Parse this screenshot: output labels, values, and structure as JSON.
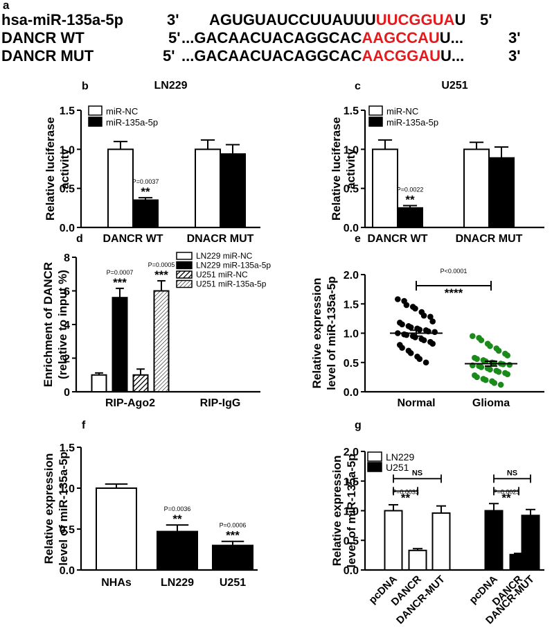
{
  "panel_a": {
    "label": "a",
    "rows": [
      {
        "name": "hsa-miR-135a-5p",
        "end5": "3'",
        "seq_pre": "AGUGUAUCCUUAUUU",
        "seq_red": "UUCGGUA",
        "seq_post": "U",
        "end3": "5'"
      },
      {
        "name": "DANCR WT",
        "end5": "5'",
        "seq_pre": "...GACAACUACAGGCAC",
        "seq_red": "AAGCCAU",
        "seq_post": "U...",
        "end3": "3'"
      },
      {
        "name": "DANCR MUT",
        "end5": "5'",
        "seq_pre": "...GACAACUACAGGCAC",
        "seq_red": "AACGGAU",
        "seq_post": "U...",
        "end3": "3'"
      }
    ]
  },
  "colors": {
    "highlight": "#e41a1c",
    "black": "#000000",
    "green": "#1a8a1a",
    "white": "#ffffff"
  },
  "chart_data": [
    {
      "id": "b",
      "type": "bar",
      "title": "LN229",
      "ylabel": [
        "Relative  luciferase",
        "activity"
      ],
      "ylim": [
        0,
        1.5
      ],
      "yticks": [
        0,
        0.5,
        1.0,
        1.5
      ],
      "ytick_labels": [
        "0.0",
        "0.5",
        "1.0",
        "1.5"
      ],
      "categories": [
        "DANCR WT",
        "DNACR MUT"
      ],
      "series": [
        {
          "name": "miR-NC",
          "fill": "white",
          "values": [
            1.0,
            1.0
          ],
          "errors": [
            0.1,
            0.12
          ]
        },
        {
          "name": "miR-135a-5p",
          "fill": "black",
          "values": [
            0.35,
            0.94
          ],
          "errors": [
            0.03,
            0.12
          ]
        }
      ],
      "annotations": [
        {
          "cat": 0,
          "series": 1,
          "p": "P=0.0037",
          "stars": "**"
        }
      ]
    },
    {
      "id": "c",
      "type": "bar",
      "title": "U251",
      "ylabel": [
        "Relative  luciferase",
        "activity"
      ],
      "ylim": [
        0,
        1.5
      ],
      "yticks": [
        0,
        0.5,
        1.0,
        1.5
      ],
      "ytick_labels": [
        "0.0",
        "0.5",
        "1.0",
        "1.5"
      ],
      "categories": [
        "DANCR WT",
        "DNACR MUT"
      ],
      "series": [
        {
          "name": "miR-NC",
          "fill": "white",
          "values": [
            1.0,
            1.0
          ],
          "errors": [
            0.12,
            0.09
          ]
        },
        {
          "name": "miR-135a-5p",
          "fill": "black",
          "values": [
            0.25,
            0.89
          ],
          "errors": [
            0.03,
            0.14
          ]
        }
      ],
      "annotations": [
        {
          "cat": 0,
          "series": 1,
          "p": "P=0.0022",
          "stars": "**"
        }
      ]
    },
    {
      "id": "d",
      "type": "bar",
      "ylabel": [
        "Enrichment of DANCR",
        "(relative to input %)"
      ],
      "ylim": [
        0,
        8
      ],
      "yticks": [
        0,
        2,
        4,
        6,
        8
      ],
      "ytick_labels": [
        "0",
        "2",
        "4",
        "6",
        "8"
      ],
      "categories": [
        "RIP-Ago2",
        "RIP-IgG"
      ],
      "series": [
        {
          "name": "LN229 miR-NC",
          "fill": "white",
          "values": [
            1.0,
            0
          ],
          "errors": [
            0.12,
            0
          ]
        },
        {
          "name": "LN229 miR-135a-5p",
          "fill": "black",
          "values": [
            5.6,
            0
          ],
          "errors": [
            0.55,
            0
          ]
        },
        {
          "name": "U251 miR-NC",
          "fill": "hatch-dense",
          "values": [
            1.0,
            0
          ],
          "errors": [
            0.35,
            0
          ]
        },
        {
          "name": "U251 miR-135a-5p",
          "fill": "hatch-light",
          "values": [
            6.0,
            0
          ],
          "errors": [
            0.6,
            0
          ]
        }
      ],
      "annotations": [
        {
          "cat": 0,
          "series": 1,
          "p": "P=0.0007",
          "stars": "***"
        },
        {
          "cat": 0,
          "series": 3,
          "p": "P=0.0005",
          "stars": "***"
        }
      ]
    },
    {
      "id": "e",
      "type": "scatter",
      "ylabel": [
        "Relative expression",
        "level of miR-135a-5p"
      ],
      "ylim": [
        0,
        2.0
      ],
      "yticks": [
        0,
        0.5,
        1.0,
        1.5,
        2.0
      ],
      "ytick_labels": [
        "0.0",
        "0.5",
        "1.0",
        "1.5",
        "2.0"
      ],
      "categories": [
        "Normal",
        "Glioma"
      ],
      "groups": [
        {
          "name": "Normal",
          "color": "black",
          "mean": 1.0,
          "sem": 0.05,
          "values": [
            1.58,
            1.55,
            1.48,
            1.45,
            1.42,
            1.36,
            1.3,
            1.28,
            1.2,
            1.18,
            1.15,
            1.12,
            1.1,
            1.08,
            1.06,
            1.05,
            1.03,
            1.02,
            1.0,
            0.98,
            0.97,
            0.95,
            0.93,
            0.9,
            0.88,
            0.85,
            0.82,
            0.8,
            0.75,
            0.7,
            0.66,
            0.6,
            0.56,
            0.5
          ]
        },
        {
          "name": "Glioma",
          "color": "green",
          "mean": 0.48,
          "sem": 0.04,
          "values": [
            0.95,
            0.92,
            0.88,
            0.82,
            0.78,
            0.74,
            0.7,
            0.65,
            0.62,
            0.58,
            0.56,
            0.54,
            0.52,
            0.5,
            0.49,
            0.48,
            0.47,
            0.46,
            0.45,
            0.44,
            0.42,
            0.4,
            0.38,
            0.36,
            0.34,
            0.32,
            0.3,
            0.28,
            0.25,
            0.22,
            0.2,
            0.18,
            0.15,
            0.12
          ]
        }
      ],
      "comparison": {
        "p": "P<0.0001",
        "stars": "****"
      }
    },
    {
      "id": "f",
      "type": "bar",
      "ylabel": [
        "Relative expression",
        "level of miR-135a-5p"
      ],
      "ylim": [
        0,
        1.5
      ],
      "yticks": [
        0,
        0.5,
        1.0,
        1.5
      ],
      "ytick_labels": [
        "0.0",
        "0.5",
        "1.0",
        "1.5"
      ],
      "categories": [
        "NHAs",
        "LN229",
        "U251"
      ],
      "fills": [
        "white",
        "black",
        "black"
      ],
      "values": [
        1.0,
        0.47,
        0.3
      ],
      "errors": [
        0.05,
        0.08,
        0.05
      ],
      "annotations": [
        {
          "index": 1,
          "p": "P=0.0036",
          "stars": "**"
        },
        {
          "index": 2,
          "p": "P=0.0006",
          "stars": "***"
        }
      ]
    },
    {
      "id": "g",
      "type": "bar",
      "ylabel": [
        "Relative expression",
        "level of miR-135a-5p"
      ],
      "ylim": [
        0,
        2.0
      ],
      "yticks": [
        0,
        0.5,
        1.0,
        1.5,
        2.0
      ],
      "ytick_labels": [
        "0.0",
        "0.5",
        "1.0",
        "1.5",
        "2.0"
      ],
      "categories": [
        "pcDNA",
        "DANCR",
        "DANCR-MUT",
        "pcDNA",
        "DANCR",
        "DANCR-MUT"
      ],
      "fills": [
        "white",
        "white",
        "white",
        "black",
        "black",
        "black"
      ],
      "values": [
        1.0,
        0.33,
        0.96,
        1.0,
        0.26,
        0.92
      ],
      "errors": [
        0.1,
        0.03,
        0.12,
        0.12,
        0.02,
        0.1
      ],
      "legend": [
        {
          "name": "LN229",
          "fill": "white"
        },
        {
          "name": "U251",
          "fill": "black"
        }
      ],
      "comparisons": [
        {
          "from": 0,
          "to": 1,
          "p": "P=0.0033",
          "stars": "**"
        },
        {
          "from": 0,
          "to": 2,
          "stars": "NS"
        },
        {
          "from": 3,
          "to": 4,
          "p": "P=0.0023",
          "stars": "**"
        },
        {
          "from": 3,
          "to": 5,
          "stars": "NS"
        }
      ]
    }
  ]
}
